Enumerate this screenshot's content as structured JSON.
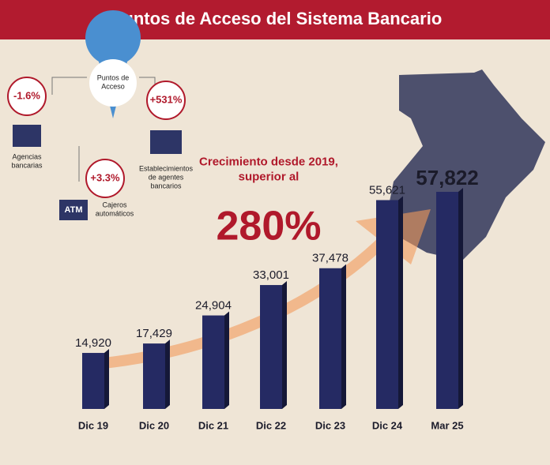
{
  "chart_data": {
    "type": "bar",
    "title": "Puntos de Acceso del Sistema Bancario",
    "categories": [
      "Dic 19",
      "Dic 20",
      "Dic 21",
      "Dic 22",
      "Dic 23",
      "Dic 24",
      "Mar 25"
    ],
    "values": [
      14920,
      17429,
      24904,
      33001,
      37478,
      55621,
      57822
    ],
    "value_labels": [
      "14,920",
      "17,429",
      "24,904",
      "33,001",
      "37,478",
      "55,621",
      "57,822"
    ],
    "color": "#252a63",
    "callouts": {
      "center": "Puntos de Acceso",
      "agencias": {
        "change": "-1.6%",
        "label": "Agencias bancarias"
      },
      "agentes": {
        "change": "+531%",
        "label": "Establecimientos de agentes bancarios"
      },
      "cajeros": {
        "change": "+3.3%",
        "label": "Cajeros automáticos",
        "icon": "ATM"
      }
    },
    "growth": {
      "text": "Crecimiento desde 2019, superior al",
      "value": "280%"
    }
  }
}
